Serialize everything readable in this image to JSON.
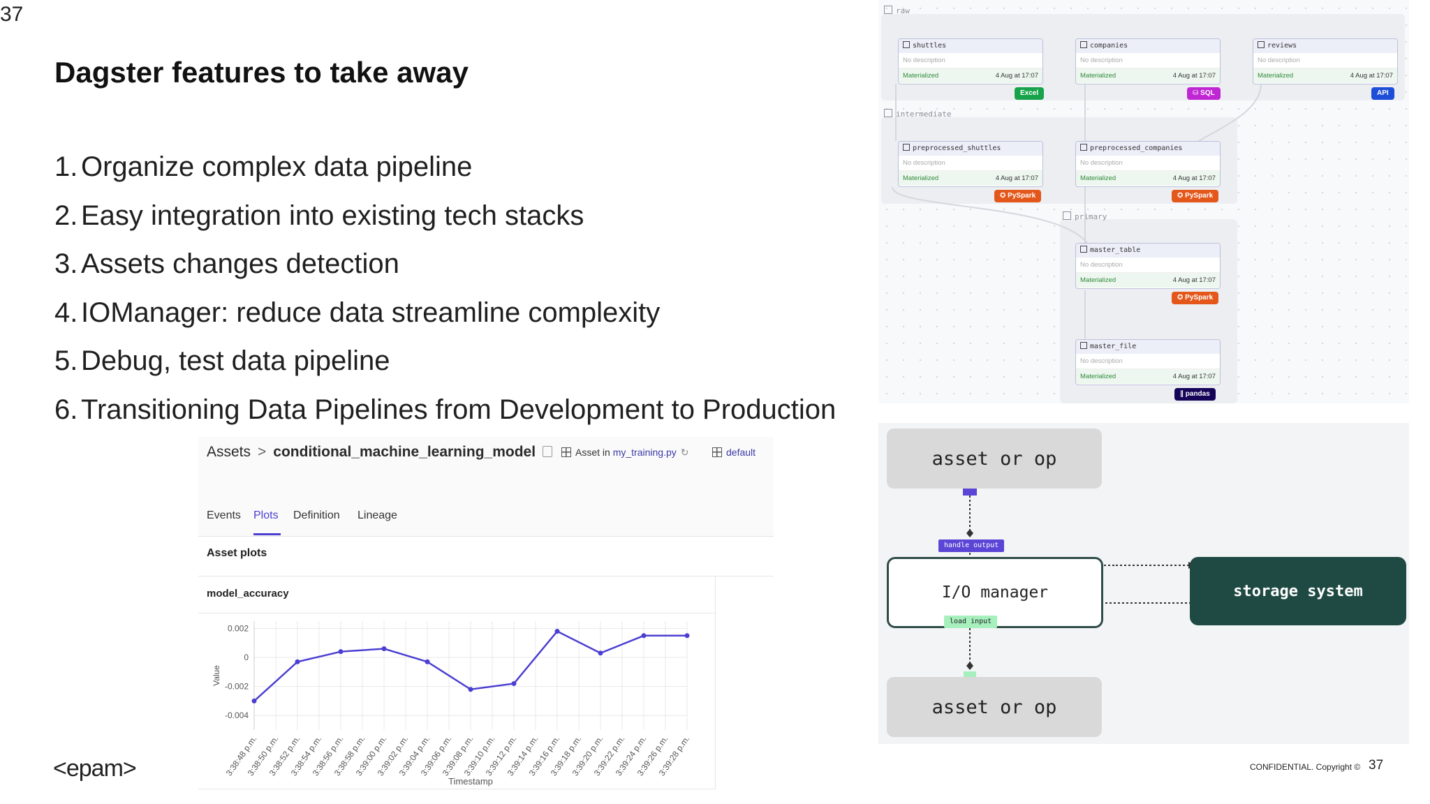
{
  "slide": {
    "number_top": "37",
    "title": "Dagster features to take away",
    "features": [
      {
        "num": "1.",
        "text": "Organize complex data pipeline"
      },
      {
        "num": "2.",
        "text": "Easy integration into existing tech stacks"
      },
      {
        "num": "3.",
        "text": "Assets changes detection"
      },
      {
        "num": "4.",
        "text": "IOManager: reduce data streamline complexity"
      },
      {
        "num": "5.",
        "text": "Debug, test data pipeline"
      },
      {
        "num": "6.",
        "text": "Transitioning Data Pipelines from Development to Production"
      }
    ],
    "logo": "<epam>",
    "confidential": "CONFIDENTIAL. Copyright ©",
    "number_bottom": "37"
  },
  "asset_view": {
    "breadcrumb_root": "Assets",
    "breadcrumb_sep": ">",
    "asset_name": "conditional_machine_learning_model",
    "asset_in_prefix": "Asset in ",
    "asset_in_file": "my_training.py",
    "code_location": "default",
    "tabs": [
      "Events",
      "Plots",
      "Definition",
      "Lineage"
    ],
    "active_tab": "Plots",
    "section_label": "Asset plots",
    "plot_title": "model_accuracy"
  },
  "chart_data": {
    "type": "line",
    "title": "model_accuracy",
    "xlabel": "Timestamp",
    "ylabel": "Value",
    "ylim": [
      -0.005,
      0.0025
    ],
    "y_ticks": [
      0.002,
      0,
      -0.002,
      -0.004
    ],
    "y_tick_labels": [
      "0.002",
      "0",
      "-0.002",
      "-0.004"
    ],
    "x_tick_labels": [
      "3:38:48 p.m.",
      "3:38:50 p.m.",
      "3:38:52 p.m.",
      "3:38:54 p.m.",
      "3:38:56 p.m.",
      "3:38:58 p.m.",
      "3:39:00 p.m.",
      "3:39:02 p.m.",
      "3:39:04 p.m.",
      "3:39:06 p.m.",
      "3:39:08 p.m.",
      "3:39:10 p.m.",
      "3:39:12 p.m.",
      "3:39:14 p.m.",
      "3:39:16 p.m.",
      "3:39:18 p.m.",
      "3:39:20 p.m.",
      "3:39:22 p.m.",
      "3:39:24 p.m.",
      "3:39:26 p.m.",
      "3:39:28 p.m."
    ],
    "series_color": "#4b3fd1",
    "x_index": [
      0,
      2,
      4,
      6,
      8,
      10,
      12,
      14,
      16,
      18,
      20
    ],
    "values": [
      -0.003,
      -0.0003,
      0.0004,
      0.0006,
      -0.0003,
      -0.0022,
      -0.0018,
      0.0018,
      0.0003,
      0.0015,
      0.0015
    ],
    "grid": true,
    "legend": "none"
  },
  "lineage": {
    "groups": [
      "raw",
      "intermediate",
      "primary"
    ],
    "nodes": [
      {
        "id": "shuttles",
        "name": "shuttles",
        "desc": "No description",
        "status": "Materialized",
        "time": "4 Aug at 17:07",
        "badge": "Excel",
        "badge_color": "#16a34a"
      },
      {
        "id": "companies",
        "name": "companies",
        "desc": "No description",
        "status": "Materialized",
        "time": "4 Aug at 17:07",
        "badge": "SQL",
        "badge_color": "#c026d3"
      },
      {
        "id": "reviews",
        "name": "reviews",
        "desc": "No description",
        "status": "Materialized",
        "time": "4 Aug at 17:07",
        "badge": "API",
        "badge_color": "#1d4ed8"
      },
      {
        "id": "preprocessed_shuttles",
        "name": "preprocessed_shuttles",
        "desc": "No description",
        "status": "Materialized",
        "time": "4 Aug at 17:07",
        "badge": "PySpark",
        "badge_color": "#e4571b"
      },
      {
        "id": "preprocessed_companies",
        "name": "preprocessed_companies",
        "desc": "No description",
        "status": "Materialized",
        "time": "4 Aug at 17:07",
        "badge": "PySpark",
        "badge_color": "#e4571b"
      },
      {
        "id": "master_table",
        "name": "master_table",
        "desc": "No description",
        "status": "Materialized",
        "time": "4 Aug at 17:07",
        "badge": "PySpark",
        "badge_color": "#e4571b"
      },
      {
        "id": "master_file",
        "name": "master_file",
        "desc": "No description",
        "status": "Materialized",
        "time": "4 Aug at 17:07",
        "badge": "pandas",
        "badge_color": "#150458"
      }
    ]
  },
  "io_diagram": {
    "asset_top": "asset or op",
    "handle_output": "handle output",
    "io_manager": "I/O manager",
    "storage": "storage system",
    "load_input": "load input",
    "asset_bottom": "asset or op"
  }
}
